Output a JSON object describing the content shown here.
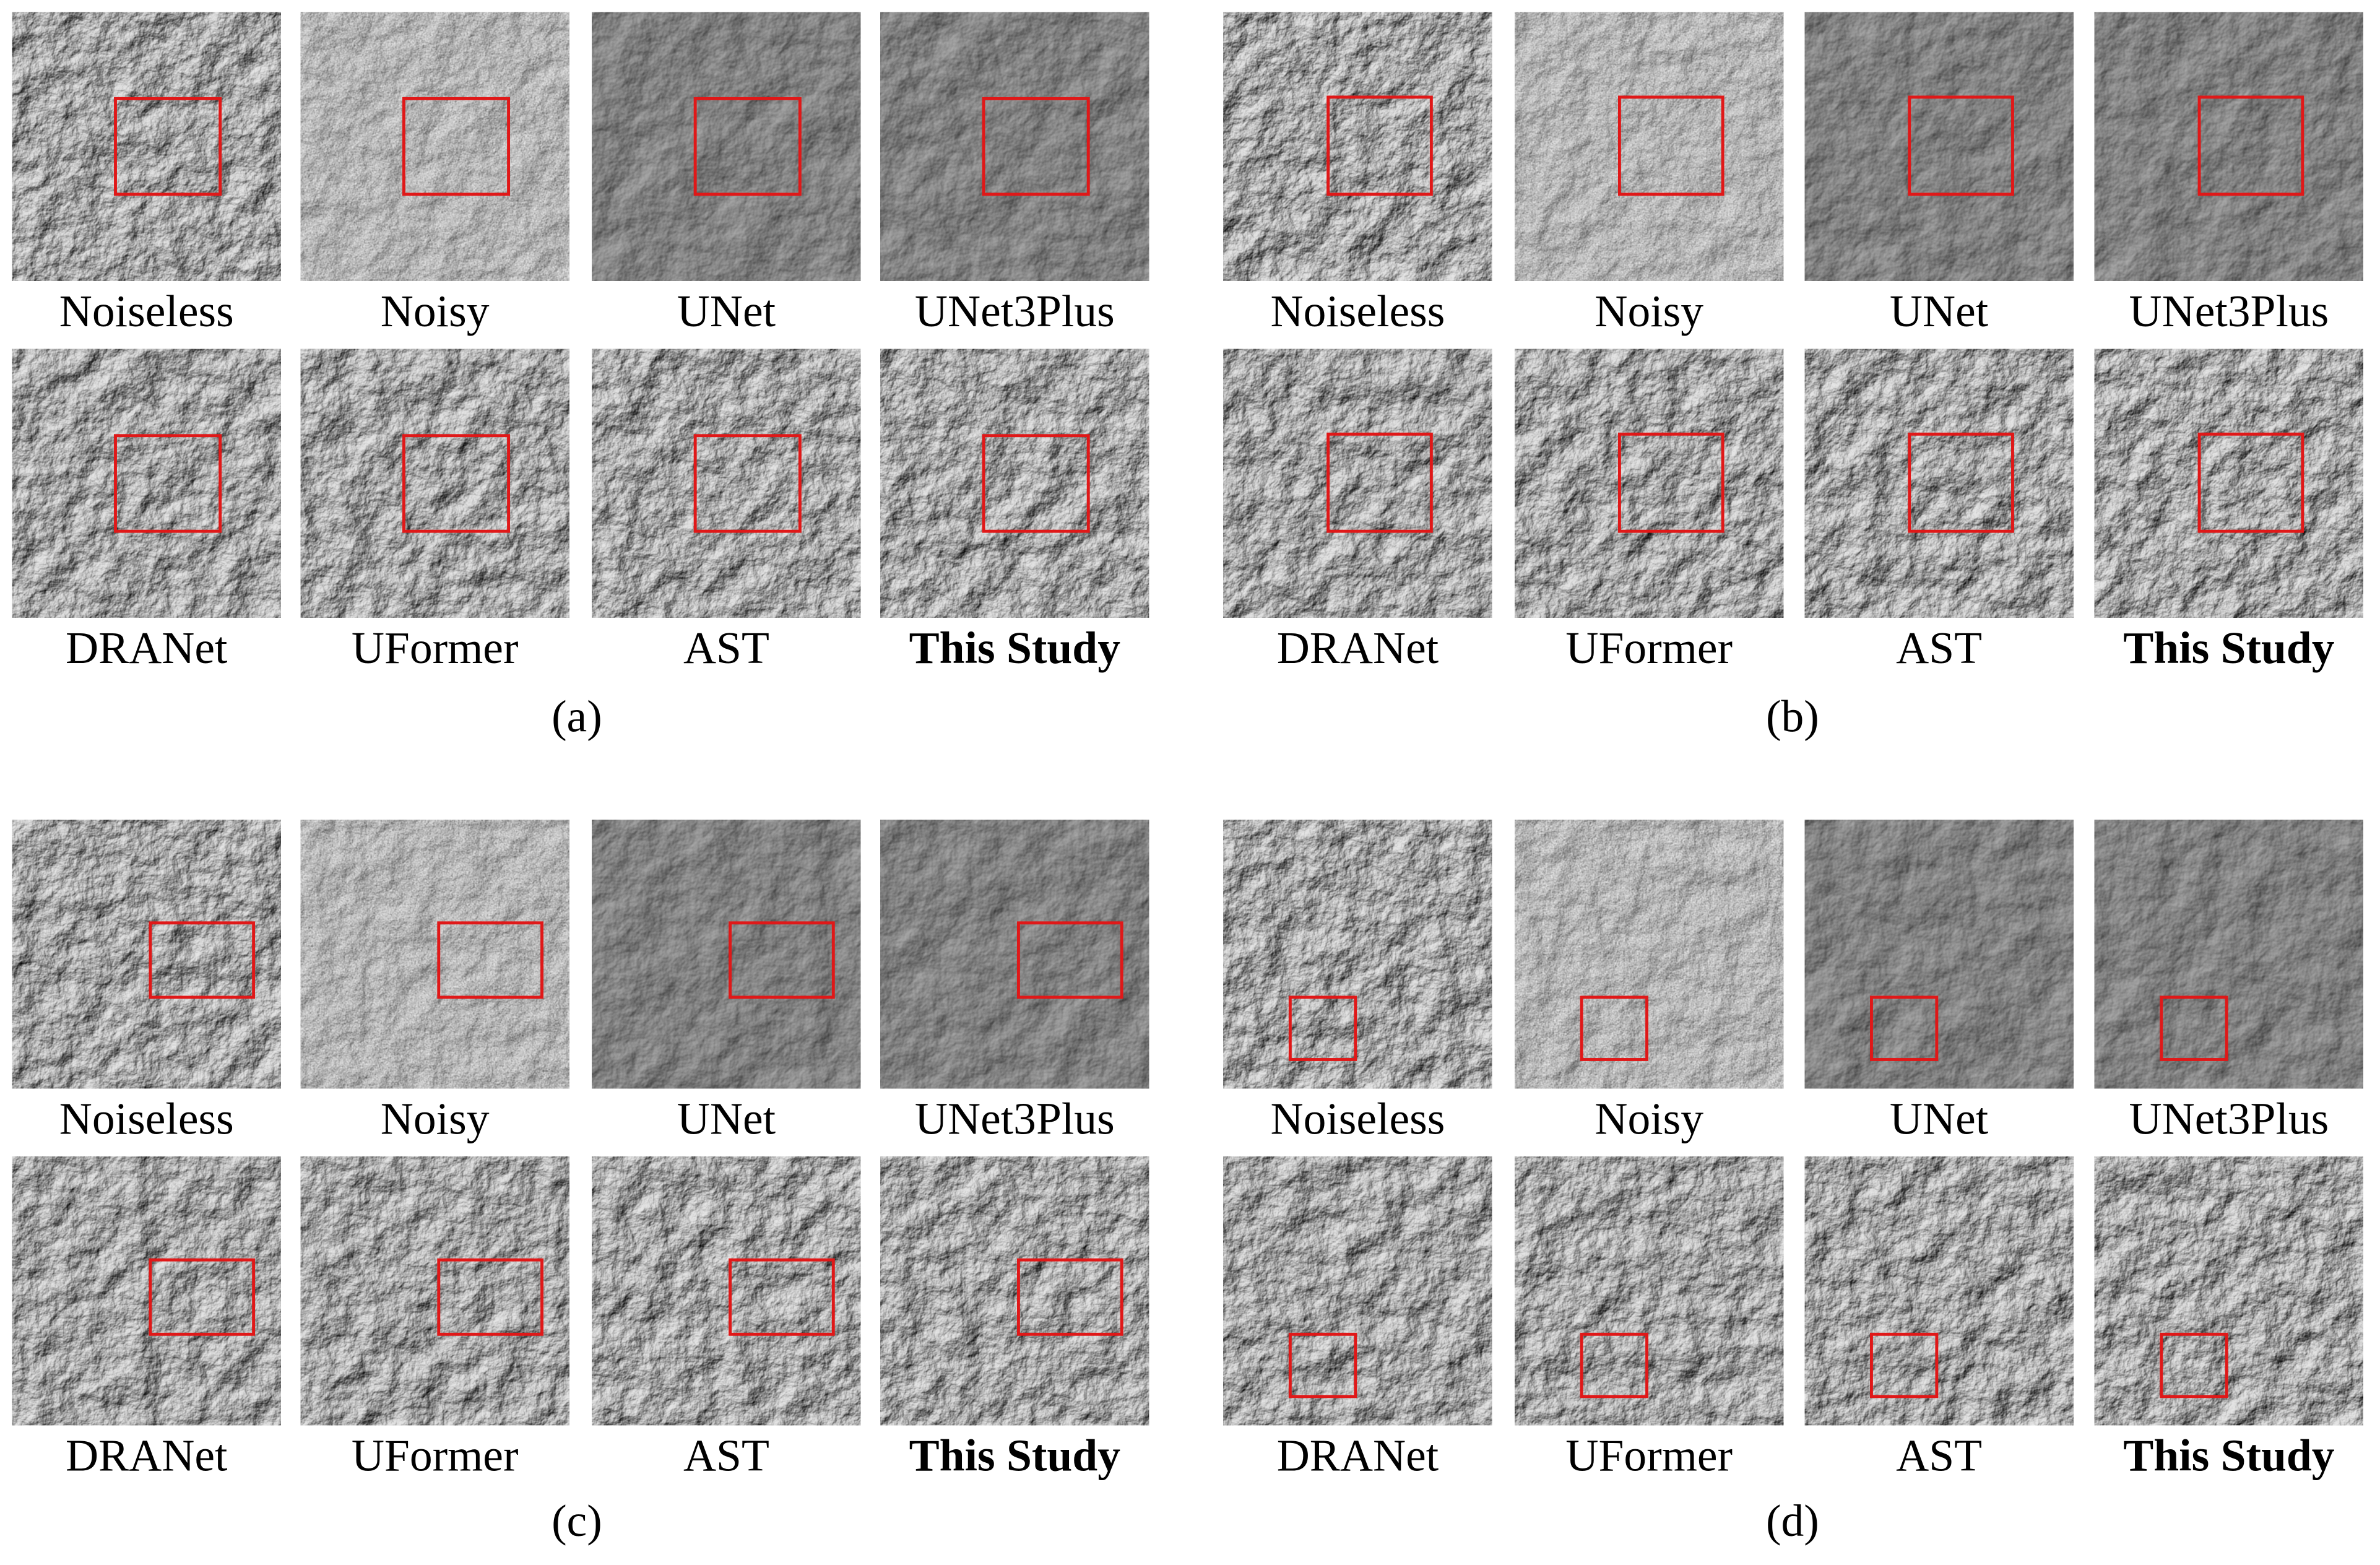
{
  "panels": [
    {
      "caption": "(a)",
      "tiles": [
        "Noiseless",
        "Noisy",
        "UNet",
        "UNet3Plus",
        "DRANet",
        "UFormer",
        "AST",
        "This Study"
      ]
    },
    {
      "caption": "(b)",
      "tiles": [
        "Noiseless",
        "Noisy",
        "UNet",
        "UNet3Plus",
        "DRANet",
        "UFormer",
        "AST",
        "This Study"
      ]
    },
    {
      "caption": "(c)",
      "tiles": [
        "Noiseless",
        "Noisy",
        "UNet",
        "UNet3Plus",
        "DRANet",
        "UFormer",
        "AST",
        "This Study"
      ]
    },
    {
      "caption": "(d)",
      "tiles": [
        "Noiseless",
        "Noisy",
        "UNet",
        "UNet3Plus",
        "DRANet",
        "UFormer",
        "AST",
        "This Study"
      ]
    }
  ]
}
